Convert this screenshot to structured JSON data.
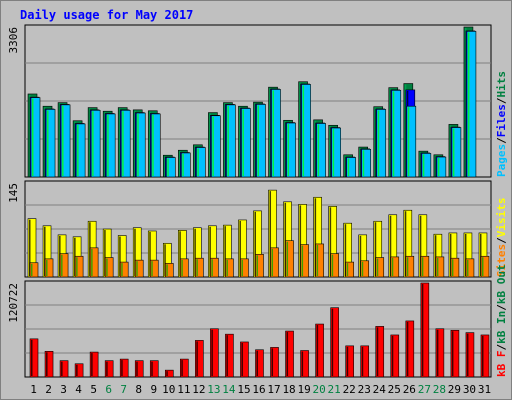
{
  "chart_data": [
    {
      "type": "bar",
      "panel": "top",
      "title": "Daily usage for May 2017",
      "categories": [
        "1",
        "2",
        "3",
        "4",
        "5",
        "6",
        "7",
        "8",
        "9",
        "10",
        "11",
        "12",
        "13",
        "14",
        "15",
        "16",
        "17",
        "18",
        "19",
        "20",
        "21",
        "22",
        "23",
        "24",
        "25",
        "26",
        "27",
        "28",
        "29",
        "30",
        "31"
      ],
      "weekend_days": [
        "6",
        "7",
        "13",
        "14",
        "20",
        "21",
        "27",
        "28"
      ],
      "ymax_label": "3306",
      "ylim": [
        0,
        3306
      ],
      "series": [
        {
          "name": "Hits",
          "color": "#008040",
          "values": [
            1830,
            1560,
            1640,
            1240,
            1530,
            1450,
            1530,
            1480,
            1460,
            480,
            590,
            710,
            1420,
            1640,
            1560,
            1650,
            1980,
            1250,
            2100,
            1260,
            1140,
            490,
            660,
            1550,
            1970,
            2060,
            570,
            490,
            1160,
            3306,
            0
          ]
        },
        {
          "name": "Files",
          "color": "#0000ff",
          "values": [
            1760,
            1500,
            1600,
            1180,
            1480,
            1400,
            1480,
            1420,
            1400,
            440,
            540,
            660,
            1360,
            1600,
            1520,
            1610,
            1940,
            1200,
            2050,
            1190,
            1090,
            440,
            620,
            1500,
            1920,
            1920,
            530,
            450,
            1100,
            3220,
            0
          ]
        },
        {
          "name": "Pages",
          "color": "#00c0ff",
          "values": [
            1750,
            1490,
            1590,
            1170,
            1470,
            1390,
            1470,
            1410,
            1390,
            430,
            530,
            650,
            1350,
            1590,
            1510,
            1600,
            1930,
            1190,
            2040,
            1180,
            1080,
            430,
            610,
            1490,
            1910,
            1560,
            520,
            440,
            1090,
            3210,
            0
          ]
        }
      ],
      "legend": [
        "Pages",
        "Files",
        "Hits"
      ],
      "legend_sep": "/"
    },
    {
      "type": "bar",
      "panel": "middle",
      "ymax_label": "145",
      "ylim": [
        0,
        145
      ],
      "series": [
        {
          "name": "Visits",
          "color": "#ffff00",
          "values": [
            90,
            79,
            65,
            62,
            86,
            74,
            64,
            76,
            71,
            52,
            72,
            76,
            79,
            80,
            88,
            102,
            134,
            116,
            112,
            123,
            109,
            83,
            65,
            86,
            96,
            103,
            96,
            66,
            68,
            68,
            68
          ]
        },
        {
          "name": "Sites",
          "color": "#ff8000",
          "values": [
            22,
            28,
            36,
            32,
            45,
            30,
            23,
            26,
            26,
            21,
            28,
            29,
            29,
            28,
            28,
            35,
            45,
            56,
            50,
            51,
            36,
            23,
            25,
            30,
            31,
            32,
            32,
            31,
            29,
            28,
            32
          ]
        }
      ],
      "legend": [
        "Sites",
        "Visits"
      ],
      "legend_sep": "/"
    },
    {
      "type": "bar",
      "panel": "bottom",
      "ymax_label": "120722",
      "ylim": [
        0,
        120722
      ],
      "series": [
        {
          "name": "kB In",
          "color": "#008040",
          "values": [
            0,
            0,
            0,
            0,
            0,
            0,
            0,
            0,
            0,
            0,
            0,
            0,
            0,
            0,
            0,
            0,
            0,
            0,
            0,
            0,
            0,
            0,
            0,
            0,
            0,
            0,
            0,
            0,
            0,
            0,
            0
          ]
        },
        {
          "name": "kB Out",
          "color": "#008040",
          "values": [
            0,
            0,
            0,
            0,
            0,
            0,
            0,
            0,
            0,
            0,
            0,
            0,
            0,
            0,
            0,
            0,
            0,
            0,
            0,
            0,
            0,
            0,
            0,
            0,
            0,
            0,
            0,
            0,
            0,
            0,
            0
          ]
        },
        {
          "name": "kB F",
          "color": "#ff0000",
          "values": [
            49000,
            33000,
            21000,
            17000,
            32000,
            21000,
            23000,
            21000,
            21000,
            8800,
            23000,
            47000,
            62000,
            55000,
            45000,
            35000,
            38000,
            59000,
            34000,
            68000,
            89000,
            40000,
            40000,
            65000,
            54000,
            72000,
            120722,
            62000,
            60000,
            57000,
            54000
          ]
        }
      ],
      "legend": [
        "kB F",
        "kB In",
        "kB Out"
      ],
      "legend_sep": "/"
    }
  ],
  "colors": {
    "background": "#c0c0c0",
    "plot_bg": "#c0c0c0",
    "title": "#0000ff",
    "weekday_label": "#000000",
    "weekend_label": "#008040",
    "gridline": "#808080"
  }
}
